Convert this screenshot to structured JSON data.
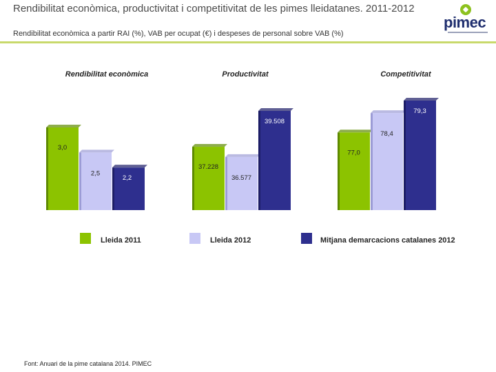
{
  "header": {
    "title": "Rendibilitat econòmica, productivitat i competitivitat de les pimes lleidatanes. 2011-2012",
    "subtitle": "Rendibilitat econòmica a partir RAI (%), VAB per ocupat (€) i despeses de personal sobre VAB (%)"
  },
  "logo": {
    "text": "pimec"
  },
  "footer": {
    "source": "Font: Anuari de la pime catalana 2014. PIMEC"
  },
  "colors": {
    "lleida_2011": "#8cc300",
    "lleida_2012": "#c8c8f5",
    "mitjana": "#2e2f8e"
  },
  "chart_data": {
    "type": "bar",
    "series_names": [
      "Lleida  2011",
      "Lleida 2012",
      "Mitjana demarcacions catalanes 2012"
    ],
    "groups": [
      {
        "title": "Rendibilitat econòmica",
        "labels": [
          "3,0",
          "2,5",
          "2,2"
        ],
        "values": [
          3.0,
          2.5,
          2.2
        ]
      },
      {
        "title": "Productivitat",
        "labels": [
          "37.228",
          "36.577",
          "39.508"
        ],
        "values": [
          37228,
          36577,
          39508
        ]
      },
      {
        "title": "Competitivitat",
        "labels": [
          "77,0",
          "78,4",
          "79,3"
        ],
        "values": [
          77.0,
          78.4,
          79.3
        ]
      }
    ],
    "legend_position": "bottom",
    "grid": false
  }
}
